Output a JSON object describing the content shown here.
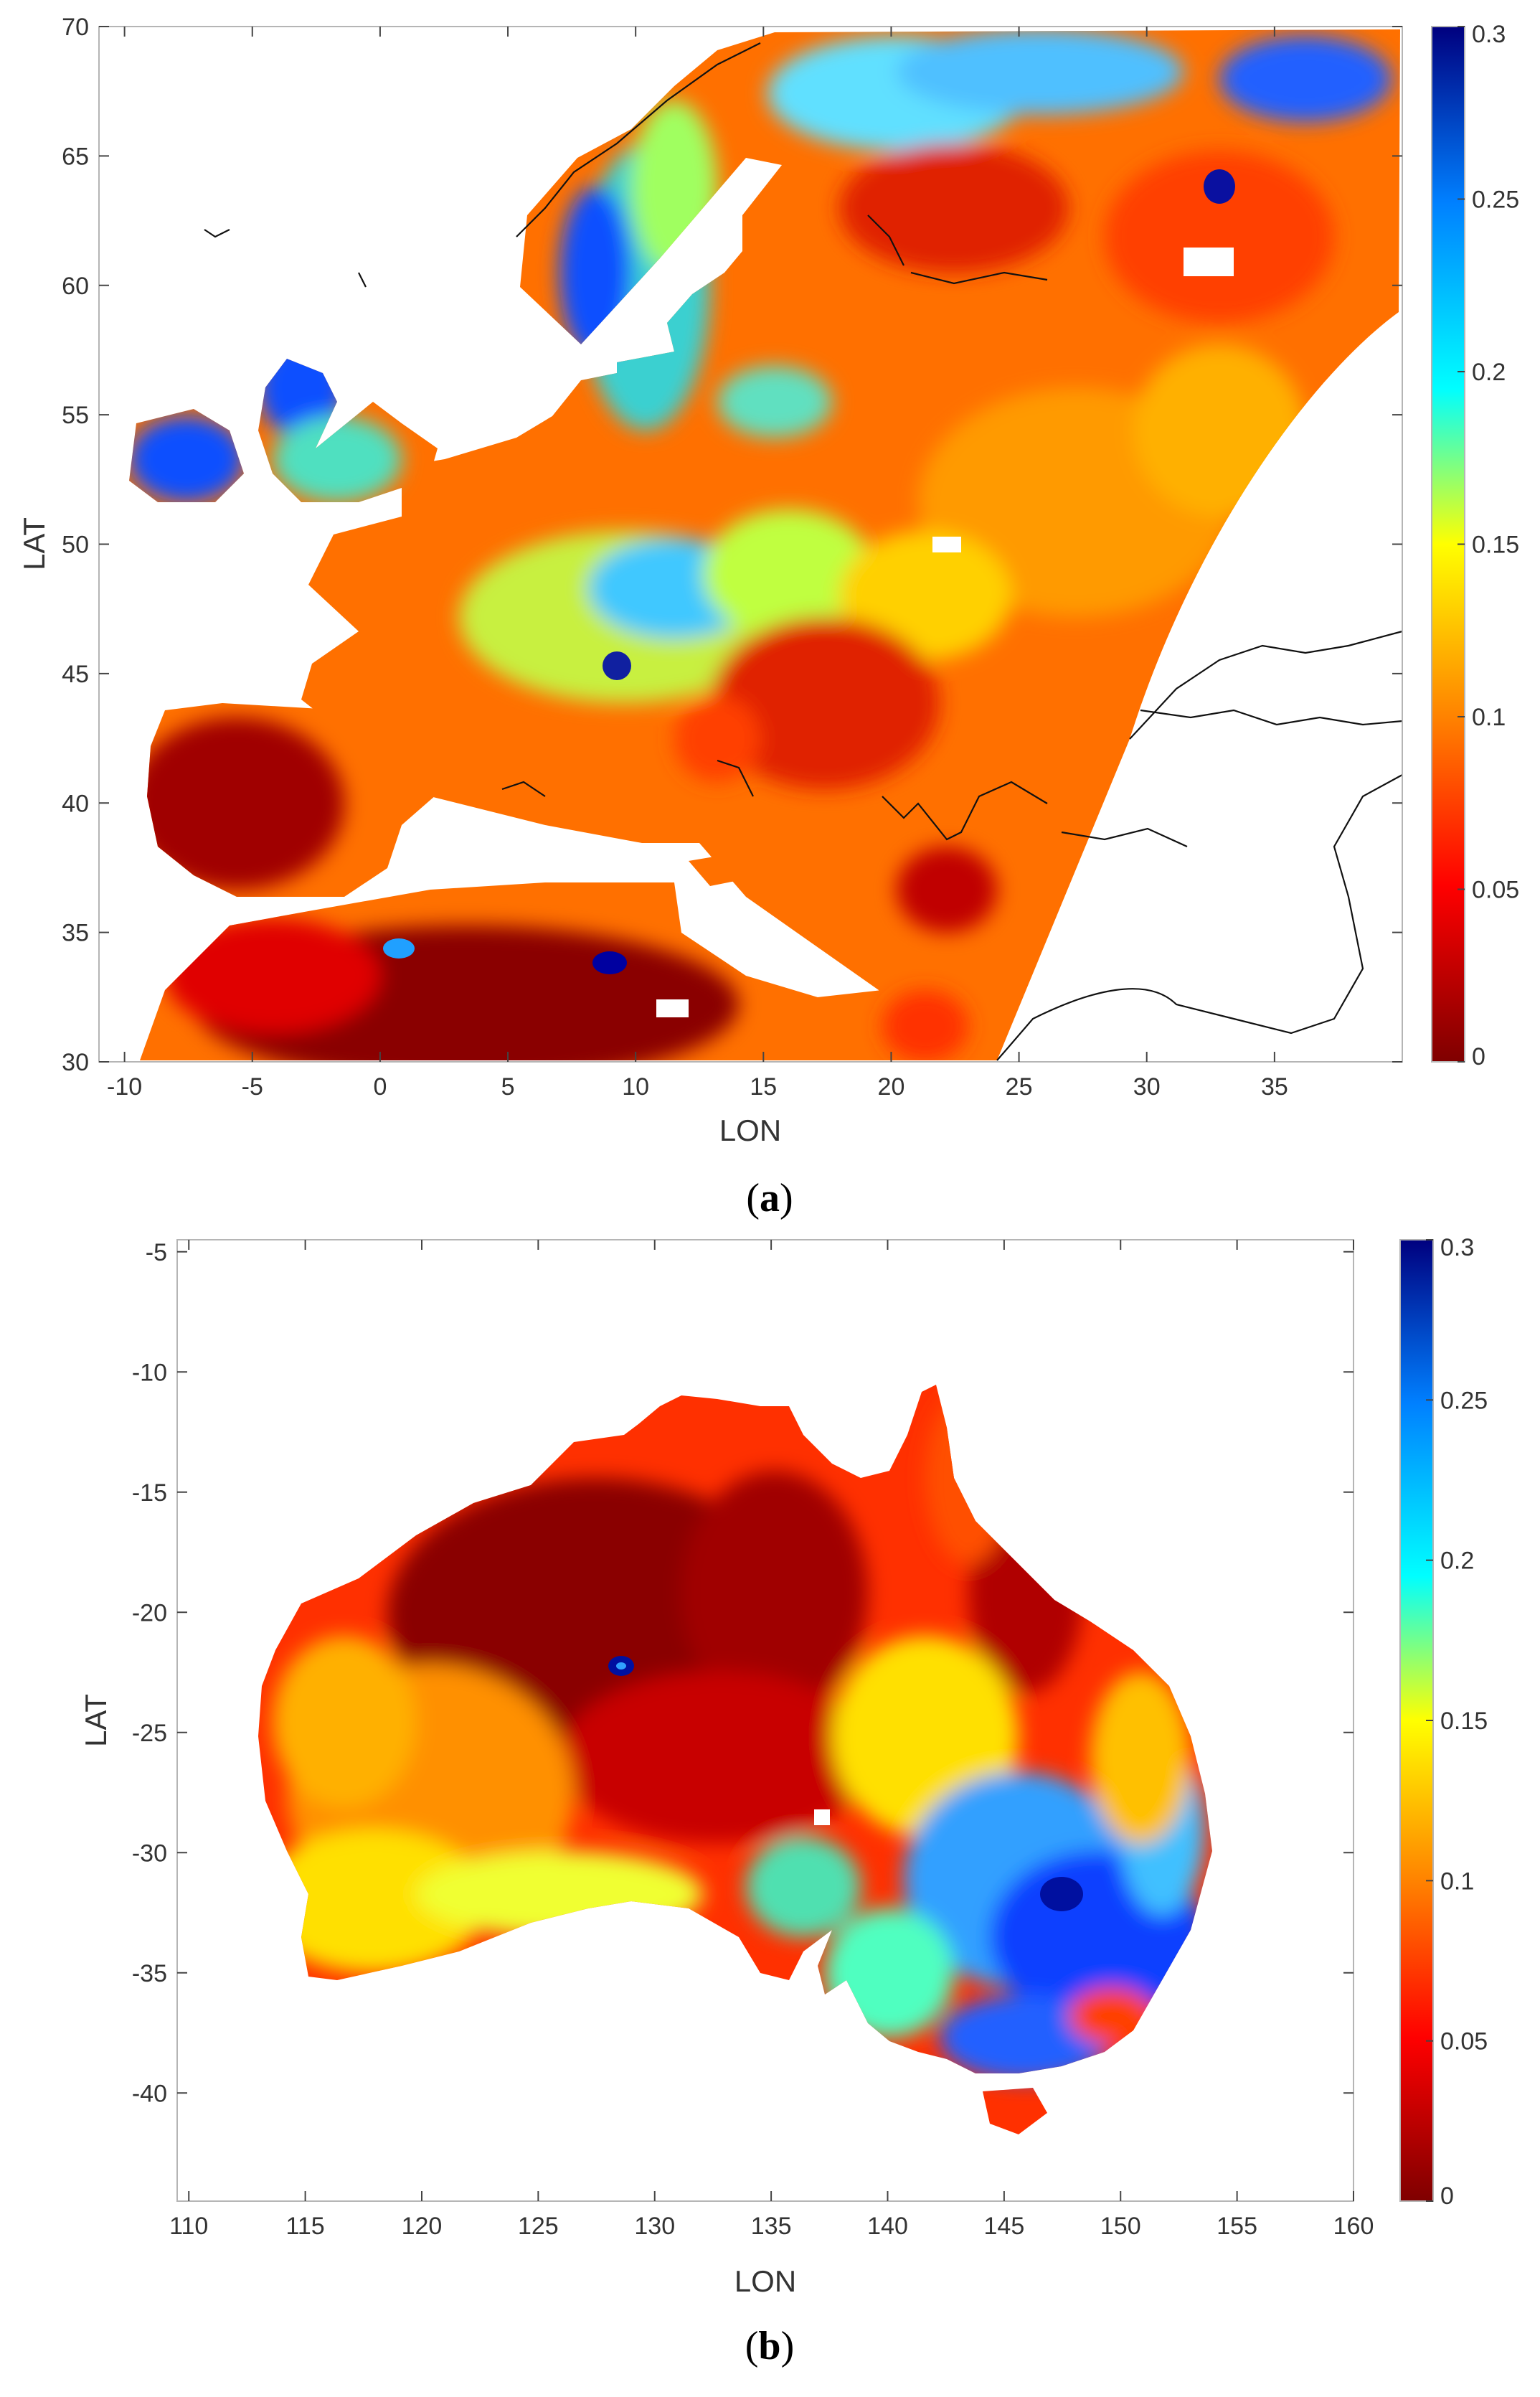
{
  "panels": [
    {
      "id": "a",
      "caption_letter": "a",
      "xlabel": "LON",
      "ylabel": "LAT",
      "xlim": [
        -11,
        40
      ],
      "ylim": [
        30,
        70
      ],
      "x_ticks": [
        "-10",
        "-5",
        "0",
        "5",
        "10",
        "15",
        "20",
        "25",
        "30",
        "35"
      ],
      "y_ticks": [
        "30",
        "35",
        "40",
        "45",
        "50",
        "55",
        "60",
        "65",
        "70"
      ],
      "colorbar_ticks": [
        "0",
        "0.05",
        "0.1",
        "0.15",
        "0.2",
        "0.25",
        "0.3"
      ],
      "clim": [
        0,
        0.3
      ]
    },
    {
      "id": "b",
      "caption_letter": "b",
      "xlabel": "LON",
      "ylabel": "LAT",
      "xlim": [
        109.5,
        160
      ],
      "ylim": [
        -44.5,
        -4.5
      ],
      "x_ticks": [
        "110",
        "115",
        "120",
        "125",
        "130",
        "135",
        "140",
        "145",
        "150",
        "155",
        "160"
      ],
      "y_ticks": [
        "-40",
        "-35",
        "-30",
        "-25",
        "-20",
        "-15",
        "-10",
        "-5"
      ],
      "colorbar_ticks": [
        "0",
        "0.05",
        "0.1",
        "0.15",
        "0.2",
        "0.25",
        "0.3"
      ],
      "clim": [
        0,
        0.3
      ]
    }
  ],
  "colormap": [
    "#7f0000",
    "#ff0000",
    "#ff8000",
    "#ffff00",
    "#00ffff",
    "#0080ff",
    "#00007f"
  ]
}
